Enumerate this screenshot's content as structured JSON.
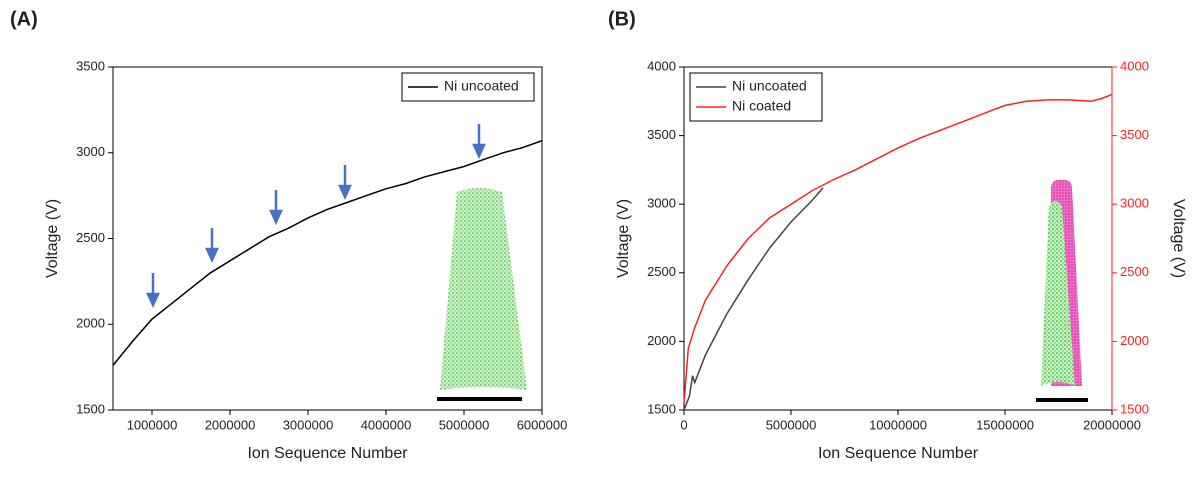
{
  "chart_data": [
    {
      "type": "line",
      "panel_label": "(A)",
      "xlabel": "Ion Sequence Number",
      "ylabel": "Voltage (V)",
      "xlim": [
        500000,
        6000000
      ],
      "xticks": [
        1000000,
        2000000,
        3000000,
        4000000,
        5000000,
        6000000
      ],
      "ylim": [
        1500,
        3500
      ],
      "yticks": [
        1500,
        2000,
        2500,
        3000,
        3500
      ],
      "legend": "upper right",
      "series": [
        {
          "name": "Ni uncoated",
          "color": "#000000",
          "x": [
            500000,
            750000,
            1000000,
            1250000,
            1500000,
            1750000,
            2000000,
            2250000,
            2500000,
            2750000,
            3000000,
            3250000,
            3500000,
            3750000,
            4000000,
            4250000,
            4500000,
            4750000,
            5000000,
            5250000,
            5500000,
            5750000,
            6000000
          ],
          "values": [
            1760,
            1900,
            2030,
            2120,
            2210,
            2300,
            2370,
            2440,
            2510,
            2560,
            2620,
            2670,
            2710,
            2750,
            2790,
            2820,
            2860,
            2890,
            2920,
            2960,
            3000,
            3030,
            3070
          ]
        }
      ]
    },
    {
      "type": "line",
      "panel_label": "(B)",
      "xlabel": "Ion Sequence Number",
      "ylabel": "Voltage (V)",
      "y2label": "Voltage (V)",
      "xlim": [
        0,
        20000000
      ],
      "xticks": [
        0,
        5000000,
        10000000,
        15000000,
        20000000
      ],
      "ylim": [
        1500,
        4000
      ],
      "yticks": [
        1500,
        2000,
        2500,
        3000,
        3500,
        4000
      ],
      "y2lim": [
        1500,
        4000
      ],
      "y2ticks": [
        1500,
        2000,
        2500,
        3000,
        3500,
        4000
      ],
      "legend": "upper left",
      "series": [
        {
          "name": "Ni uncoated",
          "color": "#444444",
          "x": [
            0,
            250000,
            400000,
            500000,
            1000000,
            1500000,
            2000000,
            3000000,
            4000000,
            5000000,
            6000000,
            6500000
          ],
          "values": [
            1500,
            1600,
            1750,
            1700,
            1900,
            2050,
            2200,
            2450,
            2680,
            2870,
            3030,
            3120
          ]
        },
        {
          "name": "Ni coated",
          "color": "#ff2020",
          "axis": "y2",
          "x": [
            0,
            200000,
            500000,
            1000000,
            2000000,
            3000000,
            4000000,
            5000000,
            6000000,
            7000000,
            8000000,
            9000000,
            10000000,
            11000000,
            12000000,
            13000000,
            14000000,
            15000000,
            16000000,
            17000000,
            18000000,
            19000000,
            19500000,
            20000000
          ],
          "values": [
            1550,
            1950,
            2100,
            2300,
            2550,
            2750,
            2900,
            3000,
            3100,
            3180,
            3250,
            3330,
            3410,
            3480,
            3540,
            3600,
            3660,
            3720,
            3750,
            3760,
            3760,
            3750,
            3770,
            3800
          ]
        }
      ]
    }
  ]
}
